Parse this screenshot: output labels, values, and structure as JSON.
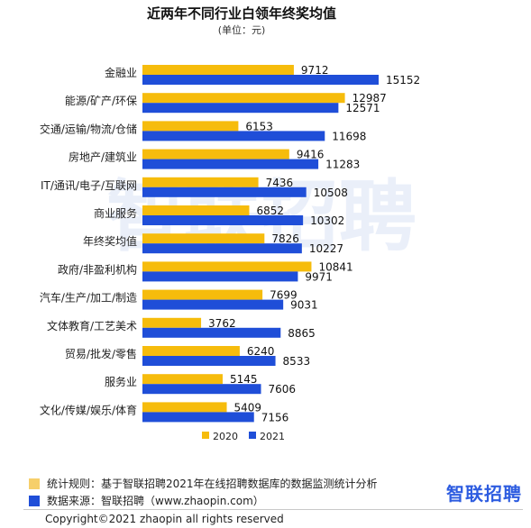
{
  "chart_data": {
    "type": "bar",
    "orientation": "horizontal",
    "title": "近两年不同行业白领年终奖均值",
    "subtitle": "(单位：元)",
    "categories": [
      "金融业",
      "能源/矿产/环保",
      "交通/运输/物流/仓储",
      "房地产/建筑业",
      "IT/通讯/电子/互联网",
      "商业服务",
      "年终奖均值",
      "政府/非盈利机构",
      "汽车/生产/加工/制造",
      "文体教育/工艺美术",
      "贸易/批发/零售",
      "服务业",
      "文化/传媒/娱乐/体育"
    ],
    "series": [
      {
        "name": "2020",
        "color": "#f6bc0c",
        "values": [
          9712,
          12987,
          6153,
          9416,
          7436,
          6852,
          7826,
          10841,
          7699,
          3762,
          6240,
          5145,
          5409
        ]
      },
      {
        "name": "2021",
        "color": "#1f4ed8",
        "values": [
          15152,
          12571,
          11698,
          11283,
          10508,
          10302,
          10227,
          9971,
          9031,
          8865,
          8533,
          7606,
          7156
        ]
      }
    ],
    "xlim": [
      0,
      15152
    ],
    "grid": false,
    "legend_position": "bottom"
  },
  "watermark": "智联招聘",
  "footer": {
    "notes": [
      {
        "text": "统计规则：基于智联招聘2021年在线招聘数据库的数据监测统计分析",
        "color": "#f6cf6a"
      },
      {
        "text": "数据来源：智联招聘（www.zhaopin.com）",
        "color": "#1f4ed8"
      }
    ],
    "brand": "智联招聘",
    "copyright": "Copyright©2021 zhaopin all rights reserved"
  }
}
